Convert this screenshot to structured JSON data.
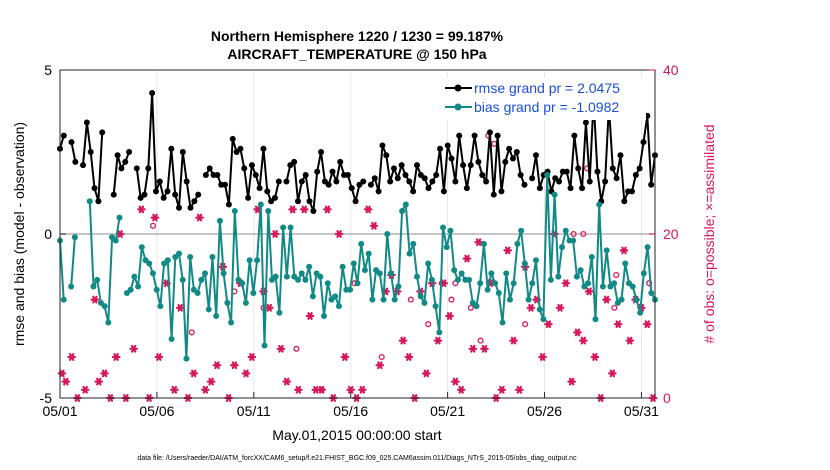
{
  "chart_data": {
    "type": "line",
    "title": "Northern Hemisphere 1220 / 1230 = 99.187%",
    "subtitle": "AIRCRAFT_TEMPERATURE @ 150 hPa",
    "xlabel": "May.01,2015 00:00:00 start",
    "ylabel_left": "rmse and bias (model - observation)",
    "ylabel_right": "# of obs: o=possible; ×=assimilated",
    "footnote": "data file: /Users/raeder/DAI/ATM_forcXX/CAM6_setup/f.e21.FHIST_BGC.f09_025.CAM6assim.011/Diags_NTrS_2015-05/obs_diag_output.nc",
    "x_ticks": [
      {
        "day": 1,
        "label": "05/01"
      },
      {
        "day": 6,
        "label": "05/06"
      },
      {
        "day": 11,
        "label": "05/11"
      },
      {
        "day": 16,
        "label": "05/16"
      },
      {
        "day": 21,
        "label": "05/21"
      },
      {
        "day": 26,
        "label": "05/26"
      },
      {
        "day": 31,
        "label": "05/31"
      }
    ],
    "xlim": [
      1,
      31.7
    ],
    "ylim_left": [
      -5,
      5
    ],
    "ylim_right": [
      0,
      40
    ],
    "y_ticks_left": [
      {
        "value": 5,
        "label": "5"
      },
      {
        "value": 0,
        "label": "0"
      },
      {
        "value": -5,
        "label": "-5"
      }
    ],
    "y_ticks_right": [
      {
        "value": 40,
        "label": "40"
      },
      {
        "value": 20,
        "label": "20"
      },
      {
        "value": 0,
        "label": "0"
      }
    ],
    "grid": true,
    "legend_position": "top-right",
    "colors": {
      "rmse": "#000000",
      "bias": "#118a85",
      "obs": "#d6175a",
      "zero_line": "#b4b4b4",
      "grid": "#e6e6e6"
    },
    "series": [
      {
        "name": "rmse grand pr = 2.0475",
        "values": [
          2.6,
          3.0,
          null,
          2.8,
          2.2,
          null,
          2.1,
          3.4,
          2.5,
          1.4,
          1.0,
          3.1,
          null,
          null,
          1.2,
          2.4,
          2.0,
          2.2,
          2.5,
          null,
          2.0,
          1.1,
          1.2,
          2.0,
          4.3,
          1.3,
          1.6,
          1.1,
          1.3,
          2.6,
          1.2,
          0.8,
          2.5,
          1.6,
          0.8,
          1.0,
          1.2,
          null,
          1.8,
          2.0,
          1.8,
          1.8,
          1.5,
          1.5,
          0.9,
          2.9,
          2.5,
          2.6,
          2.0,
          1.1,
          2.1,
          1.8,
          1.4,
          2.6,
          1.3,
          1.0,
          1.1,
          1.6,
          null,
          1.6,
          2.1,
          2.2,
          1.0,
          1.6,
          1.8,
          1.0,
          0.7,
          1.9,
          2.5,
          1.6,
          1.5,
          1.9,
          1.6,
          2.2,
          1.8,
          1.8,
          1.4,
          1.0,
          1.5,
          1.6,
          null,
          1.5,
          1.7,
          1.3,
          2.7,
          2.4,
          1.6,
          2.0,
          1.7,
          2.1,
          1.8,
          1.6,
          1.3,
          2.1,
          1.8,
          1.7,
          1.4,
          1.6,
          1.8,
          2.6,
          1.3,
          2.7,
          2.3,
          1.6,
          3.0,
          2.1,
          1.4,
          2.1,
          3.0,
          2.2,
          1.8,
          1.6,
          3.1,
          1.2,
          3.0,
          1.3,
          2.2,
          2.6,
          2.3,
          2.5,
          1.8,
          1.5,
          null,
          1.7,
          2.4,
          1.4,
          1.8,
          1.9,
          1.3,
          1.7,
          1.6,
          1.9,
          1.9,
          1.4,
          3.0,
          2.0,
          1.4,
          3.4,
          1.6,
          4.1,
          1.9,
          1.0,
          1.6,
          3.9,
          2.0,
          1.7,
          2.4,
          1.0,
          1.3,
          1.3,
          1.8,
          2.0,
          2.8,
          3.6,
          1.5,
          2.4
        ],
        "marker": "filled-circle"
      },
      {
        "name": "bias grand pr = -1.0982",
        "values": [
          -0.2,
          -2.0,
          null,
          -1.6,
          -0.1,
          null,
          null,
          null,
          1.0,
          -1.6,
          -1.4,
          -2.1,
          -2.2,
          -2.7,
          -0.1,
          -0.2,
          0.5,
          null,
          -1.8,
          -1.7,
          -1.3,
          -1.6,
          -0.4,
          -0.8,
          -0.9,
          -1.2,
          -1.7,
          -2.2,
          -0.9,
          -0.8,
          -3.2,
          -0.7,
          -0.6,
          -1.4,
          -3.8,
          -0.7,
          -1.7,
          -1.8,
          -1.4,
          -1.2,
          -2.3,
          -0.7,
          -2.5,
          0.4,
          -1.2,
          -2.1,
          -2.7,
          0.7,
          -1.4,
          -1.5,
          -2.1,
          -0.8,
          -1.8,
          -0.8,
          0.9,
          -3.4,
          0.7,
          -1.4,
          -1.3,
          -2.4,
          0.2,
          -1.3,
          0.2,
          -1.3,
          -1.4,
          -1.2,
          -1.4,
          -1.0,
          -1.9,
          -1.2,
          -1.3,
          -2.5,
          -1.5,
          -2.0,
          -1.9,
          -2.2,
          -1.0,
          -1.7,
          -1.7,
          -0.9,
          -1.5,
          -0.3,
          -1.1,
          -0.6,
          -2.0,
          -1.1,
          -1.2,
          -2.0,
          0.0,
          -1.2,
          -2.0,
          -1.6,
          0.7,
          0.9,
          -0.6,
          -0.3,
          -1.3,
          -1.9,
          -2.1,
          -0.9,
          -1.4,
          -2.2,
          -3.0,
          0.2,
          -0.4,
          0.1,
          -1.1,
          -1.4,
          -1.2,
          -1.4,
          -1.4,
          -2.1,
          -2.2,
          -1.5,
          -0.3,
          -1.7,
          -1.2,
          -1.5,
          -1.8,
          -2.7,
          -1.2,
          -2.0,
          -1.5,
          -0.3,
          0.1,
          -0.9,
          -2.0,
          -1.5,
          -0.8,
          -2.3,
          -2.6,
          1.8,
          -1.4,
          1.2,
          -1.3,
          -0.4,
          0.1,
          -0.2,
          -0.2,
          -1.3,
          -1.1,
          -1.6,
          -1.5,
          -0.7,
          -2.6,
          0.9,
          -1.6,
          -0.5,
          -1.6,
          -1.5,
          -2.1,
          -2.0,
          -0.9,
          -1.5,
          -1.6,
          -2.0,
          -2.4,
          -1.2,
          -0.4,
          -1.8,
          -2.0
        ],
        "marker": "filled-circle"
      },
      {
        "name": "obs assimilated",
        "x": [
          1.1,
          1.3,
          1.6,
          1.9,
          2.3,
          2.8,
          3.0,
          3.3,
          3.6,
          3.9,
          4.1,
          4.4,
          4.8,
          5.2,
          5.6,
          5.9,
          6.1,
          6.5,
          6.9,
          7.2,
          7.6,
          7.9,
          8.2,
          8.5,
          8.8,
          9.1,
          9.4,
          9.7,
          10.0,
          10.3,
          10.6,
          10.9,
          11.2,
          11.5,
          11.8,
          12.1,
          12.4,
          12.7,
          13.0,
          13.3,
          13.6,
          13.9,
          14.2,
          14.5,
          14.8,
          15.1,
          15.4,
          15.7,
          16.0,
          16.3,
          16.6,
          16.9,
          17.2,
          17.5,
          17.8,
          18.1,
          18.4,
          18.7,
          19.0,
          19.3,
          19.6,
          19.9,
          20.2,
          20.5,
          20.8,
          21.1,
          21.4,
          21.7,
          22.0,
          22.3,
          22.6,
          22.9,
          23.2,
          23.5,
          23.8,
          24.1,
          24.4,
          24.7,
          25.0,
          25.3,
          25.6,
          25.9,
          26.2,
          26.5,
          26.8,
          27.1,
          27.4,
          27.7,
          28.0,
          28.3,
          28.6,
          28.9,
          29.2,
          29.5,
          29.8,
          30.1,
          30.4,
          30.7,
          31.0,
          31.3,
          31.6
        ],
        "values": [
          3,
          2,
          5,
          0,
          1,
          12,
          2,
          3,
          0,
          5,
          20,
          0,
          6,
          23,
          0,
          22,
          5,
          14,
          1,
          11,
          0,
          3,
          22,
          1,
          2,
          4,
          16,
          0,
          4,
          14,
          3,
          5,
          23,
          13,
          11,
          20,
          6,
          2,
          23,
          1,
          23,
          10,
          1,
          1,
          23,
          0,
          20,
          5,
          1,
          0,
          1,
          23,
          21,
          4,
          13,
          15,
          13,
          7,
          5,
          0,
          13,
          3,
          14,
          7,
          14,
          10,
          2,
          1,
          17,
          6,
          19,
          6,
          14,
          0,
          1,
          18,
          7,
          1,
          16,
          11,
          12,
          5,
          9,
          20,
          11,
          14,
          2,
          8,
          7,
          13,
          5,
          0,
          12,
          3,
          9,
          18,
          7,
          12,
          11,
          9,
          0
        ],
        "marker": "asterisk"
      },
      {
        "name": "obs possible",
        "x": [
          5.8,
          7.8,
          10.0,
          11.5,
          13.2,
          14.5,
          16.2,
          17.6,
          19.1,
          20.0,
          20.7,
          21.2,
          21.4,
          22.2,
          22.7,
          23.1,
          23.4,
          25.0,
          27.5,
          28.0,
          28.2,
          29.6,
          29.7,
          31.4
        ],
        "values": [
          21,
          8,
          13,
          11,
          6,
          1,
          14,
          5,
          12,
          9,
          14,
          12,
          14,
          11,
          7,
          32,
          31,
          9,
          20,
          20,
          28,
          11,
          15,
          14
        ],
        "marker": "open-circle"
      }
    ]
  }
}
